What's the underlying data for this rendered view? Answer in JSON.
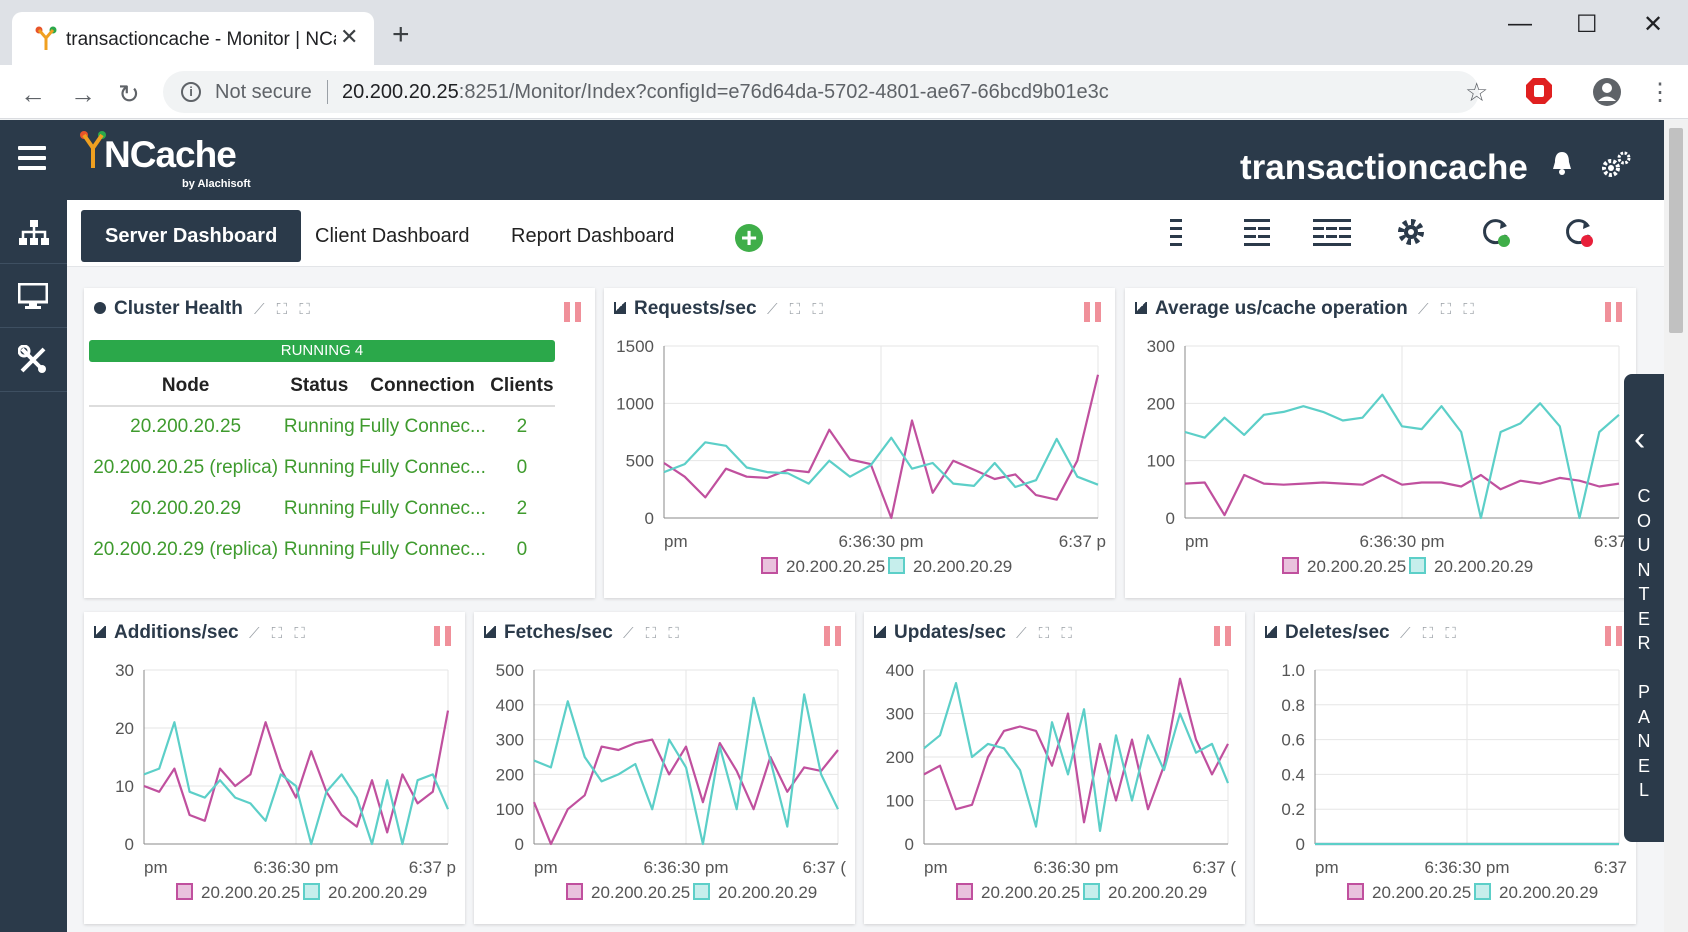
{
  "browser": {
    "tab_title": "transactioncache - Monitor | NCache",
    "tab_close": "✕",
    "new_tab": "+",
    "not_secure": "Not secure",
    "url_host": "20.200.20.25",
    "url_rest": ":8251/Monitor/Index?configId=e76d64da-5702-4801-ae67-66bcd9b01e3c",
    "minimize": "—",
    "maximize": "☐",
    "close": "✕"
  },
  "app": {
    "logo_text": "NCache",
    "logo_sub": "by Alachisoft",
    "title": "transactioncache"
  },
  "tabs": [
    {
      "label": "Server Dashboard"
    },
    {
      "label": "Client Dashboard"
    },
    {
      "label": "Report Dashboard"
    }
  ],
  "cluster": {
    "title": "Cluster Health",
    "running": "RUNNING 4",
    "headers": [
      "Node",
      "Status",
      "Connection",
      "Clients"
    ],
    "rows": [
      [
        "20.200.20.25",
        "Running",
        "Fully Connec...",
        "2"
      ],
      [
        "20.200.20.25 (replica)",
        "Running",
        "Fully Connec...",
        "0"
      ],
      [
        "20.200.20.29",
        "Running",
        "Fully Connec...",
        "2"
      ],
      [
        "20.200.20.29 (replica)",
        "Running",
        "Fully Connec...",
        "0"
      ]
    ]
  },
  "counter_panel": "COUNTER PANEL",
  "colors": {
    "series1": "#c0509e",
    "series2": "#5ccfc8",
    "header": "#2b3a4a",
    "green": "#2ba84a"
  },
  "chart_data": [
    {
      "type": "line",
      "title": "Requests/sec",
      "x_ticks": [
        "pm",
        "6:36:30 pm",
        "6:37 p"
      ],
      "y_ticks": [
        "1500",
        "1000",
        "500",
        "0"
      ],
      "ylim": [
        0,
        1500
      ],
      "series": [
        {
          "name": "20.200.20.25",
          "values": [
            480,
            360,
            180,
            430,
            360,
            350,
            420,
            400,
            770,
            510,
            470,
            0,
            850,
            220,
            500,
            420,
            340,
            380,
            200,
            160,
            500,
            1250
          ]
        },
        {
          "name": "20.200.20.29",
          "values": [
            400,
            470,
            660,
            630,
            440,
            400,
            390,
            300,
            500,
            360,
            460,
            700,
            430,
            480,
            300,
            280,
            480,
            270,
            330,
            690,
            360,
            290
          ]
        }
      ]
    },
    {
      "type": "line",
      "title": "Average us/cache operation",
      "x_ticks": [
        "pm",
        "6:36:30 pm",
        "6:37"
      ],
      "y_ticks": [
        "300",
        "200",
        "100",
        "0"
      ],
      "ylim": [
        0,
        300
      ],
      "series": [
        {
          "name": "20.200.20.25",
          "values": [
            60,
            62,
            5,
            75,
            60,
            58,
            60,
            62,
            60,
            58,
            75,
            58,
            62,
            62,
            55,
            75,
            50,
            65,
            60,
            70,
            65,
            55,
            60
          ]
        },
        {
          "name": "20.200.20.29",
          "values": [
            150,
            140,
            175,
            145,
            180,
            185,
            195,
            185,
            170,
            175,
            215,
            160,
            155,
            195,
            150,
            0,
            150,
            165,
            200,
            160,
            0,
            150,
            180
          ]
        }
      ]
    },
    {
      "type": "line",
      "title": "Additions/sec",
      "x_ticks": [
        "pm",
        "6:36:30 pm",
        "6:37 p"
      ],
      "y_ticks": [
        "30",
        "20",
        "10",
        "0"
      ],
      "ylim": [
        0,
        30
      ],
      "series": [
        {
          "name": "20.200.20.25",
          "values": [
            10,
            9,
            13,
            5,
            4,
            13,
            10,
            12,
            21,
            13,
            8,
            16,
            9,
            5,
            3,
            11,
            2,
            12,
            7,
            9,
            23
          ]
        },
        {
          "name": "20.200.20.29",
          "values": [
            12,
            13,
            21,
            9,
            8,
            11,
            8,
            7,
            4,
            12,
            10,
            0,
            9,
            12,
            8,
            0,
            11,
            0,
            11,
            12,
            6
          ]
        }
      ]
    },
    {
      "type": "line",
      "title": "Fetches/sec",
      "x_ticks": [
        "pm",
        "6:36:30 pm",
        "6:37 ("
      ],
      "y_ticks": [
        "500",
        "400",
        "300",
        "200",
        "100",
        "0"
      ],
      "ylim": [
        0,
        500
      ],
      "series": [
        {
          "name": "20.200.20.25",
          "values": [
            120,
            0,
            100,
            140,
            280,
            270,
            290,
            300,
            200,
            280,
            120,
            290,
            210,
            100,
            250,
            150,
            220,
            210,
            270
          ]
        },
        {
          "name": "20.200.20.29",
          "values": [
            240,
            220,
            410,
            250,
            180,
            200,
            230,
            100,
            300,
            220,
            0,
            280,
            100,
            420,
            240,
            50,
            430,
            200,
            100
          ]
        }
      ]
    },
    {
      "type": "line",
      "title": "Updates/sec",
      "x_ticks": [
        "pm",
        "6:36:30 pm",
        "6:37 ("
      ],
      "y_ticks": [
        "400",
        "300",
        "200",
        "100",
        "0"
      ],
      "ylim": [
        0,
        400
      ],
      "series": [
        {
          "name": "20.200.20.25",
          "values": [
            160,
            180,
            80,
            90,
            200,
            260,
            270,
            260,
            180,
            300,
            50,
            230,
            100,
            240,
            80,
            180,
            380,
            240,
            160,
            230
          ]
        },
        {
          "name": "20.200.20.29",
          "values": [
            220,
            250,
            370,
            200,
            230,
            220,
            170,
            40,
            280,
            160,
            310,
            30,
            250,
            100,
            250,
            170,
            300,
            210,
            230,
            140
          ]
        }
      ]
    },
    {
      "type": "line",
      "title": "Deletes/sec",
      "x_ticks": [
        "pm",
        "6:36:30 pm",
        "6:37"
      ],
      "y_ticks": [
        "1.0",
        "0.8",
        "0.6",
        "0.4",
        "0.2",
        "0"
      ],
      "ylim": [
        0,
        1
      ],
      "series": [
        {
          "name": "20.200.20.25",
          "values": [
            0,
            0,
            0,
            0,
            0,
            0,
            0,
            0,
            0,
            0
          ]
        },
        {
          "name": "20.200.20.29",
          "values": [
            0,
            0,
            0,
            0,
            0,
            0,
            0,
            0,
            0,
            0
          ]
        }
      ]
    }
  ]
}
